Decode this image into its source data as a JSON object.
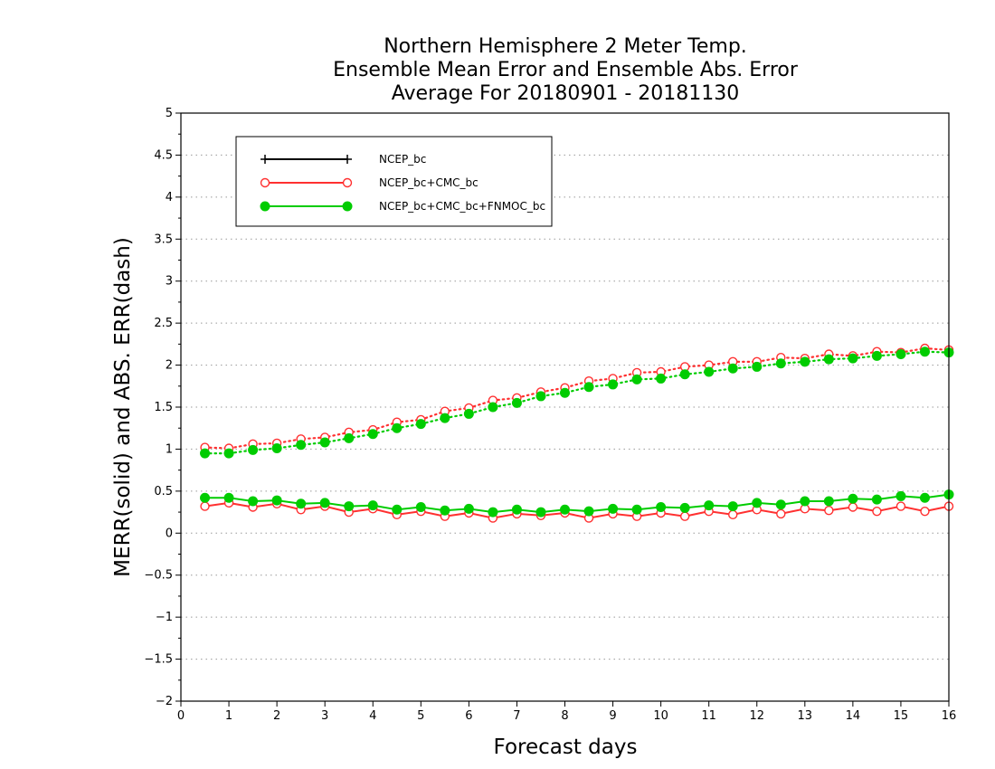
{
  "chart_data": {
    "type": "line",
    "title": [
      "Northern Hemisphere 2 Meter Temp.",
      "Ensemble Mean Error and Ensemble Abs. Error",
      "Average For 20180901 - 20181130"
    ],
    "xlabel": "Forecast days",
    "ylabel": "MERR(solid) and ABS. ERR(dash)",
    "xlim": [
      0,
      16
    ],
    "ylim": [
      -2,
      5
    ],
    "xticks": [
      "0",
      "1",
      "2",
      "3",
      "4",
      "5",
      "6",
      "7",
      "8",
      "9",
      "10",
      "11",
      "12",
      "13",
      "14",
      "15",
      "16"
    ],
    "yticks": [
      "-2",
      "-1.5",
      "-1",
      "-0.5",
      "0",
      "0.5",
      "1",
      "1.5",
      "2",
      "2.5",
      "3",
      "3.5",
      "4",
      "4.5",
      "5"
    ],
    "grid": "horizontal dotted",
    "legend_position": "top-left",
    "x": [
      0.5,
      1,
      1.5,
      2,
      2.5,
      3,
      3.5,
      4,
      4.5,
      5,
      5.5,
      6,
      6.5,
      7,
      7.5,
      8,
      8.5,
      9,
      9.5,
      10,
      10.5,
      11,
      11.5,
      12,
      12.5,
      13,
      13.5,
      14,
      14.5,
      15,
      15.5,
      16
    ],
    "series": [
      {
        "name": "NCEP_bc",
        "color": "#000000",
        "marker": "plus",
        "merr": null,
        "abs_err": null
      },
      {
        "name": "NCEP_bc+CMC_bc",
        "color": "#ff3030",
        "marker": "open-circle",
        "merr": [
          0.32,
          0.36,
          0.31,
          0.35,
          0.28,
          0.32,
          0.25,
          0.29,
          0.22,
          0.26,
          0.2,
          0.24,
          0.18,
          0.23,
          0.21,
          0.24,
          0.18,
          0.23,
          0.2,
          0.24,
          0.2,
          0.26,
          0.22,
          0.28,
          0.23,
          0.29,
          0.27,
          0.31,
          0.26,
          0.32,
          0.26,
          0.32
        ],
        "abs_err": [
          1.02,
          1.01,
          1.06,
          1.07,
          1.12,
          1.14,
          1.2,
          1.23,
          1.32,
          1.35,
          1.45,
          1.49,
          1.58,
          1.61,
          1.68,
          1.73,
          1.81,
          1.84,
          1.91,
          1.92,
          1.98,
          2.0,
          2.04,
          2.04,
          2.09,
          2.08,
          2.13,
          2.11,
          2.16,
          2.15,
          2.2,
          2.18
        ]
      },
      {
        "name": "NCEP_bc+CMC_bc+FNMOC_bc",
        "color": "#00cc00",
        "marker": "filled-circle",
        "merr": [
          0.42,
          0.42,
          0.38,
          0.39,
          0.35,
          0.36,
          0.32,
          0.33,
          0.28,
          0.31,
          0.27,
          0.29,
          0.25,
          0.28,
          0.25,
          0.28,
          0.26,
          0.29,
          0.28,
          0.31,
          0.3,
          0.33,
          0.32,
          0.36,
          0.34,
          0.38,
          0.38,
          0.41,
          0.4,
          0.44,
          0.42,
          0.46
        ],
        "abs_err": [
          0.95,
          0.95,
          0.99,
          1.01,
          1.05,
          1.08,
          1.13,
          1.18,
          1.25,
          1.3,
          1.37,
          1.42,
          1.5,
          1.55,
          1.63,
          1.67,
          1.74,
          1.77,
          1.83,
          1.84,
          1.89,
          1.92,
          1.96,
          1.98,
          2.02,
          2.04,
          2.07,
          2.08,
          2.11,
          2.13,
          2.16,
          2.15
        ]
      }
    ]
  }
}
